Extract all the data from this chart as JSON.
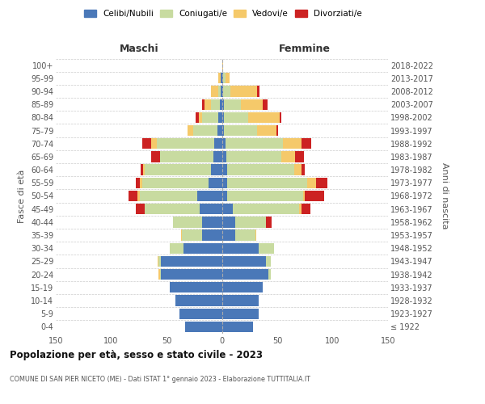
{
  "age_groups": [
    "100+",
    "95-99",
    "90-94",
    "85-89",
    "80-84",
    "75-79",
    "70-74",
    "65-69",
    "60-64",
    "55-59",
    "50-54",
    "45-49",
    "40-44",
    "35-39",
    "30-34",
    "25-29",
    "20-24",
    "15-19",
    "10-14",
    "5-9",
    "0-4"
  ],
  "birth_years": [
    "≤ 1922",
    "1923-1927",
    "1928-1932",
    "1933-1937",
    "1938-1942",
    "1943-1947",
    "1948-1952",
    "1953-1957",
    "1958-1962",
    "1963-1967",
    "1968-1972",
    "1973-1977",
    "1978-1982",
    "1983-1987",
    "1988-1992",
    "1993-1997",
    "1998-2002",
    "2003-2007",
    "2008-2012",
    "2013-2017",
    "2018-2022"
  ],
  "colors": {
    "celibe": "#4a78b8",
    "coniugato": "#c8dba0",
    "vedovo": "#f5c96a",
    "divorziato": "#cc2222"
  },
  "maschi": {
    "celibe": [
      0,
      1,
      1,
      2,
      3,
      4,
      7,
      8,
      10,
      12,
      22,
      20,
      18,
      18,
      35,
      55,
      55,
      47,
      42,
      38,
      33
    ],
    "coniugato": [
      0,
      0,
      2,
      8,
      15,
      22,
      52,
      48,
      60,
      60,
      52,
      50,
      26,
      18,
      12,
      2,
      1,
      0,
      0,
      0,
      0
    ],
    "vedovo": [
      0,
      2,
      7,
      6,
      3,
      5,
      5,
      0,
      1,
      2,
      2,
      0,
      0,
      1,
      0,
      1,
      1,
      0,
      0,
      0,
      0
    ],
    "divorziato": [
      0,
      0,
      0,
      2,
      3,
      0,
      8,
      8,
      2,
      4,
      8,
      8,
      0,
      0,
      0,
      0,
      0,
      0,
      0,
      0,
      0
    ]
  },
  "femmine": {
    "nubile": [
      0,
      1,
      1,
      2,
      2,
      2,
      3,
      4,
      5,
      5,
      5,
      10,
      12,
      12,
      33,
      40,
      42,
      37,
      33,
      33,
      28
    ],
    "coniugata": [
      0,
      2,
      7,
      15,
      22,
      30,
      52,
      50,
      60,
      72,
      68,
      60,
      28,
      18,
      14,
      4,
      2,
      0,
      0,
      0,
      0
    ],
    "vedova": [
      1,
      4,
      24,
      20,
      28,
      17,
      17,
      12,
      7,
      8,
      2,
      2,
      0,
      1,
      0,
      0,
      0,
      0,
      0,
      0,
      0
    ],
    "divorziata": [
      0,
      0,
      2,
      4,
      2,
      2,
      9,
      8,
      3,
      10,
      17,
      8,
      5,
      0,
      0,
      0,
      0,
      0,
      0,
      0,
      0
    ]
  },
  "xlim": 150,
  "title": "Popolazione per età, sesso e stato civile - 2023",
  "subtitle": "COMUNE DI SAN PIER NICETO (ME) - Dati ISTAT 1° gennaio 2023 - Elaborazione TUTTITALIA.IT",
  "ylabel_left": "Fasce di età",
  "ylabel_right": "Anni di nascita",
  "xlabel_maschi": "Maschi",
  "xlabel_femmine": "Femmine",
  "legend_labels": [
    "Celibi/Nubili",
    "Coniugati/e",
    "Vedovi/e",
    "Divorziati/e"
  ],
  "background_color": "#ffffff",
  "bar_height": 0.82
}
